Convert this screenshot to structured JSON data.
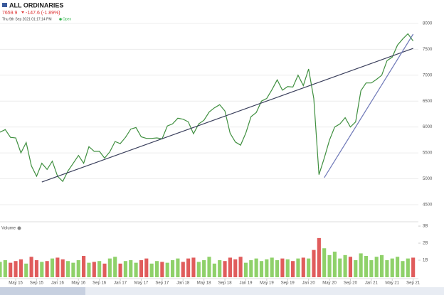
{
  "header": {
    "title": "ALL ORDINARIES",
    "last": "7659.9",
    "change": "-147.6 (-1.89%)",
    "timestamp": "Thu 9th Sep 2021 01:17:14 PM",
    "status": "Open"
  },
  "chart_data": [
    {
      "type": "line",
      "color": "#3f8f3f",
      "x": [
        "2015-02",
        "2015-03",
        "2015-04",
        "2015-05",
        "2015-06",
        "2015-07",
        "2015-08",
        "2015-09",
        "2015-10",
        "2015-11",
        "2015-12",
        "2016-01",
        "2016-02",
        "2016-03",
        "2016-04",
        "2016-05",
        "2016-06",
        "2016-07",
        "2016-08",
        "2016-09",
        "2016-10",
        "2016-11",
        "2016-12",
        "2017-01",
        "2017-02",
        "2017-03",
        "2017-04",
        "2017-05",
        "2017-06",
        "2017-07",
        "2017-08",
        "2017-09",
        "2017-10",
        "2017-11",
        "2017-12",
        "2018-01",
        "2018-02",
        "2018-03",
        "2018-04",
        "2018-05",
        "2018-06",
        "2018-07",
        "2018-08",
        "2018-09",
        "2018-10",
        "2018-11",
        "2018-12",
        "2019-01",
        "2019-02",
        "2019-03",
        "2019-04",
        "2019-05",
        "2019-06",
        "2019-07",
        "2019-08",
        "2019-09",
        "2019-10",
        "2019-11",
        "2019-12",
        "2020-01",
        "2020-02",
        "2020-03",
        "2020-04",
        "2020-05",
        "2020-06",
        "2020-07",
        "2020-08",
        "2020-09",
        "2020-10",
        "2020-11",
        "2020-12",
        "2021-01",
        "2021-02",
        "2021-03",
        "2021-04",
        "2021-05",
        "2021-06",
        "2021-07",
        "2021-08",
        "2021-09"
      ],
      "values": [
        5900,
        5950,
        5800,
        5790,
        5500,
        5700,
        5250,
        5050,
        5300,
        5180,
        5340,
        5050,
        4950,
        5150,
        5300,
        5450,
        5300,
        5620,
        5530,
        5530,
        5400,
        5520,
        5720,
        5680,
        5800,
        5960,
        5990,
        5810,
        5780,
        5780,
        5790,
        5770,
        6020,
        6060,
        6170,
        6150,
        6100,
        5870,
        6060,
        6130,
        6290,
        6370,
        6430,
        6310,
        5880,
        5710,
        5650,
        5880,
        6200,
        6280,
        6500,
        6550,
        6720,
        6910,
        6710,
        6780,
        6770,
        7000,
        6800,
        7120,
        6550,
        5080,
        5400,
        5750,
        6000,
        6060,
        6180,
        6000,
        6100,
        6700,
        6850,
        6850,
        6920,
        7000,
        7280,
        7350,
        7580,
        7700,
        7800,
        7660
      ],
      "trendlines": [
        {
          "x": [
            "2015-10",
            "2021-09"
          ],
          "values": [
            4938,
            7518
          ],
          "color": "#3a3f5c"
        },
        {
          "x": [
            "2020-04",
            "2021-09"
          ],
          "values": [
            5021,
            7793
          ],
          "color": "#6f79b8"
        }
      ],
      "xlim": [
        "2015-02",
        "2021-10"
      ],
      "ylim": [
        4170,
        8040
      ],
      "yticks": [
        4500,
        5000,
        5500,
        6000,
        6500,
        7000,
        7500,
        8000
      ],
      "grid": true
    },
    {
      "type": "bar",
      "title": "Volume",
      "x": [
        "2015-02",
        "2015-03",
        "2015-04",
        "2015-05",
        "2015-06",
        "2015-07",
        "2015-08",
        "2015-09",
        "2015-10",
        "2015-11",
        "2015-12",
        "2016-01",
        "2016-02",
        "2016-03",
        "2016-04",
        "2016-05",
        "2016-06",
        "2016-07",
        "2016-08",
        "2016-09",
        "2016-10",
        "2016-11",
        "2016-12",
        "2017-01",
        "2017-02",
        "2017-03",
        "2017-04",
        "2017-05",
        "2017-06",
        "2017-07",
        "2017-08",
        "2017-09",
        "2017-10",
        "2017-11",
        "2017-12",
        "2018-01",
        "2018-02",
        "2018-03",
        "2018-04",
        "2018-05",
        "2018-06",
        "2018-07",
        "2018-08",
        "2018-09",
        "2018-10",
        "2018-11",
        "2018-12",
        "2019-01",
        "2019-02",
        "2019-03",
        "2019-04",
        "2019-05",
        "2019-06",
        "2019-07",
        "2019-08",
        "2019-09",
        "2019-10",
        "2019-11",
        "2019-12",
        "2020-01",
        "2020-02",
        "2020-03",
        "2020-04",
        "2020-05",
        "2020-06",
        "2020-07",
        "2020-08",
        "2020-09",
        "2020-10",
        "2020-11",
        "2020-12",
        "2021-01",
        "2021-02",
        "2021-03",
        "2021-04",
        "2021-05",
        "2021-06",
        "2021-07",
        "2021-08",
        "2021-09"
      ],
      "values": [
        900000000,
        1000000000,
        850000000,
        950000000,
        1050000000,
        800000000,
        1200000000,
        1000000000,
        900000000,
        950000000,
        1100000000,
        1150000000,
        1050000000,
        950000000,
        850000000,
        1000000000,
        1250000000,
        850000000,
        900000000,
        950000000,
        800000000,
        1100000000,
        1200000000,
        800000000,
        950000000,
        1000000000,
        850000000,
        1000000000,
        1100000000,
        800000000,
        950000000,
        900000000,
        850000000,
        1000000000,
        1100000000,
        900000000,
        1100000000,
        1150000000,
        900000000,
        1000000000,
        1200000000,
        800000000,
        1000000000,
        950000000,
        1150000000,
        1050000000,
        1200000000,
        850000000,
        1000000000,
        1100000000,
        950000000,
        1050000000,
        1150000000,
        1000000000,
        1100000000,
        1050000000,
        950000000,
        1100000000,
        1150000000,
        1100000000,
        1600000000,
        2300000000,
        1700000000,
        1300000000,
        1500000000,
        1100000000,
        1300000000,
        1200000000,
        1000000000,
        1400000000,
        1250000000,
        1000000000,
        1200000000,
        1300000000,
        1000000000,
        1100000000,
        1200000000,
        950000000,
        1100000000,
        1150000000
      ],
      "colors": {
        "up": "#8fd16a",
        "down": "#e05c5c"
      },
      "xlim": [
        "2015-02",
        "2021-10"
      ],
      "ylim": [
        0,
        3170000000
      ],
      "yticks": [
        {
          "value": 1000000000,
          "label": "1B"
        },
        {
          "value": 2000000000,
          "label": "2B"
        },
        {
          "value": 3000000000,
          "label": "3B"
        }
      ],
      "xticks": [
        {
          "value": "2015-05",
          "label": "May 15"
        },
        {
          "value": "2015-09",
          "label": "Sep 15"
        },
        {
          "value": "2016-01",
          "label": "Jan 16"
        },
        {
          "value": "2016-05",
          "label": "May 16"
        },
        {
          "value": "2016-09",
          "label": "Sep 16"
        },
        {
          "value": "2017-01",
          "label": "Jan 17"
        },
        {
          "value": "2017-05",
          "label": "May 17"
        },
        {
          "value": "2017-09",
          "label": "Sep 17"
        },
        {
          "value": "2018-01",
          "label": "Jan 18"
        },
        {
          "value": "2018-05",
          "label": "May 18"
        },
        {
          "value": "2018-09",
          "label": "Sep 18"
        },
        {
          "value": "2019-01",
          "label": "Jan 19"
        },
        {
          "value": "2019-05",
          "label": "May 19"
        },
        {
          "value": "2019-09",
          "label": "Sep 19"
        },
        {
          "value": "2020-01",
          "label": "Jan 20"
        },
        {
          "value": "2020-05",
          "label": "May 20"
        },
        {
          "value": "2020-09",
          "label": "Sep 20"
        },
        {
          "value": "2021-01",
          "label": "Jan 21"
        },
        {
          "value": "2021-05",
          "label": "May 21"
        },
        {
          "value": "2021-09",
          "label": "Sep 21"
        }
      ]
    }
  ]
}
